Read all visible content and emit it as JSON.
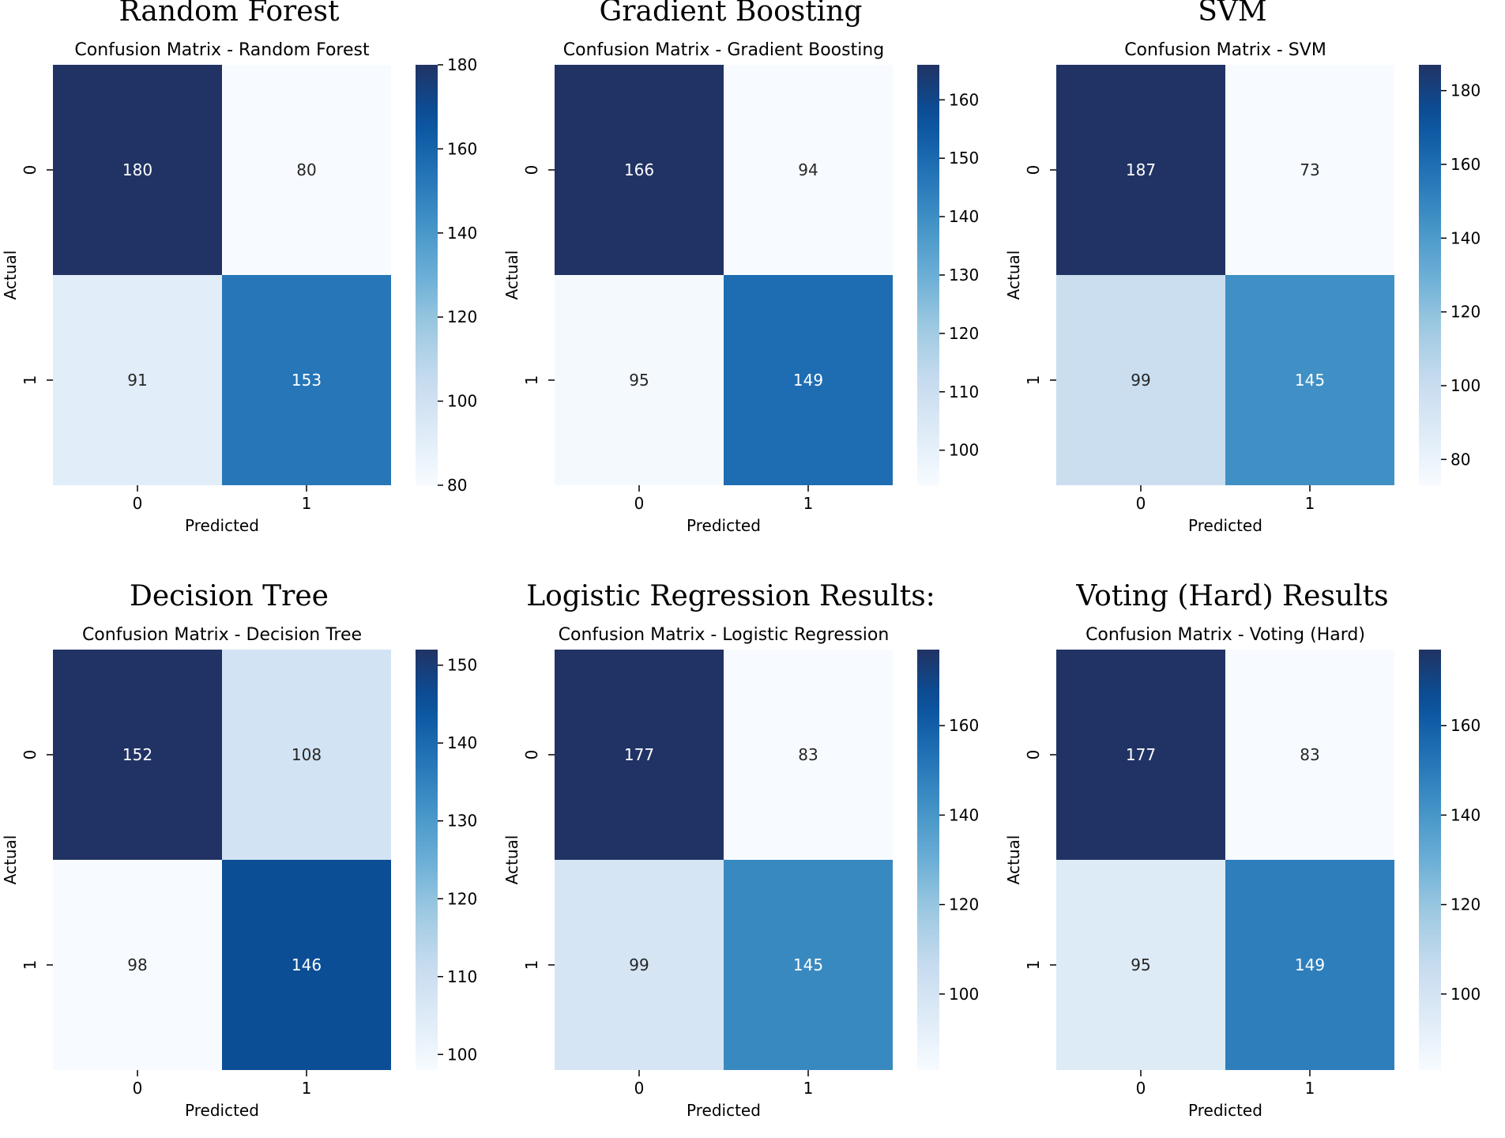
{
  "chart_data": [
    {
      "type": "heatmap",
      "panel_title": "Random Forest",
      "title": "Confusion Matrix - Random Forest",
      "xlabel": "Predicted",
      "ylabel": "Actual",
      "x_categories": [
        "0",
        "1"
      ],
      "y_categories": [
        "0",
        "1"
      ],
      "values": [
        [
          180,
          80
        ],
        [
          91,
          153
        ]
      ],
      "colormap": "Blues",
      "colorbar_range": [
        80,
        180
      ],
      "colorbar_ticks": [
        80,
        100,
        120,
        140,
        160,
        180
      ]
    },
    {
      "type": "heatmap",
      "panel_title": "Gradient Boosting",
      "title": "Confusion Matrix - Gradient Boosting",
      "xlabel": "Predicted",
      "ylabel": "Actual",
      "x_categories": [
        "0",
        "1"
      ],
      "y_categories": [
        "0",
        "1"
      ],
      "values": [
        [
          166,
          94
        ],
        [
          95,
          149
        ]
      ],
      "colormap": "Blues",
      "colorbar_range": [
        94,
        166
      ],
      "colorbar_ticks": [
        100,
        110,
        120,
        130,
        140,
        150,
        160
      ]
    },
    {
      "type": "heatmap",
      "panel_title": "SVM",
      "title": "Confusion Matrix - SVM",
      "xlabel": "Predicted",
      "ylabel": "Actual",
      "x_categories": [
        "0",
        "1"
      ],
      "y_categories": [
        "0",
        "1"
      ],
      "values": [
        [
          187,
          73
        ],
        [
          99,
          145
        ]
      ],
      "colormap": "Blues",
      "colorbar_range": [
        73,
        187
      ],
      "colorbar_ticks": [
        80,
        100,
        120,
        140,
        160,
        180
      ]
    },
    {
      "type": "heatmap",
      "panel_title": "Decision Tree",
      "title": "Confusion Matrix - Decision Tree",
      "xlabel": "Predicted",
      "ylabel": "Actual",
      "x_categories": [
        "0",
        "1"
      ],
      "y_categories": [
        "0",
        "1"
      ],
      "values": [
        [
          152,
          108
        ],
        [
          98,
          146
        ]
      ],
      "colormap": "Blues",
      "colorbar_range": [
        98,
        152
      ],
      "colorbar_ticks": [
        100,
        110,
        120,
        130,
        140,
        150
      ]
    },
    {
      "type": "heatmap",
      "panel_title": "Logistic Regression Results:",
      "title": "Confusion Matrix - Logistic Regression",
      "xlabel": "Predicted",
      "ylabel": "Actual",
      "x_categories": [
        "0",
        "1"
      ],
      "y_categories": [
        "0",
        "1"
      ],
      "values": [
        [
          177,
          83
        ],
        [
          99,
          145
        ]
      ],
      "colormap": "Blues",
      "colorbar_range": [
        83,
        177
      ],
      "colorbar_ticks": [
        100,
        120,
        140,
        160
      ]
    },
    {
      "type": "heatmap",
      "panel_title": "Voting (Hard) Results",
      "title": "Confusion Matrix - Voting (Hard)",
      "xlabel": "Predicted",
      "ylabel": "Actual",
      "x_categories": [
        "0",
        "1"
      ],
      "y_categories": [
        "0",
        "1"
      ],
      "values": [
        [
          177,
          83
        ],
        [
          95,
          149
        ]
      ],
      "colormap": "Blues",
      "colorbar_range": [
        83,
        177
      ],
      "colorbar_ticks": [
        100,
        120,
        140,
        160
      ]
    }
  ]
}
